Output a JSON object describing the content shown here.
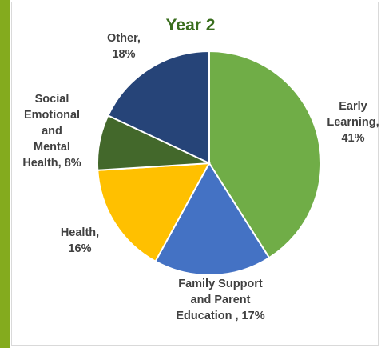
{
  "chart_data": {
    "type": "pie",
    "title": "Year 2",
    "slices": [
      {
        "label": "Early\nLearning,\n41%",
        "value": 41,
        "color": "#70ad47"
      },
      {
        "label": "Family Support\nand Parent\nEducation , 17%",
        "value": 17,
        "color": "#4472c4"
      },
      {
        "label": "Health,\n16%",
        "value": 16,
        "color": "#ffc000"
      },
      {
        "label": "Social\nEmotional\nand\nMental\nHealth, 8%",
        "value": 8,
        "color": "#43682b"
      },
      {
        "label": "Other,\n18%",
        "value": 18,
        "color": "#264478"
      }
    ]
  },
  "colors": {
    "accent_bar": "#84ab1e",
    "title": "#3a6e1e"
  }
}
